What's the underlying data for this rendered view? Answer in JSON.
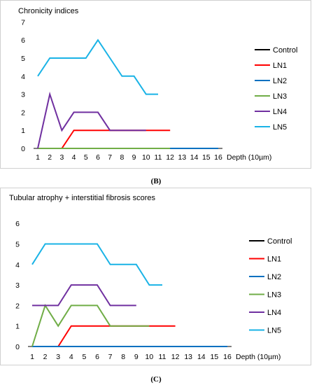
{
  "chart_data": [
    {
      "type": "line",
      "title": "Chronicity indices",
      "xlabel": "Depth (10µm)",
      "ylabel": "",
      "x": [
        1,
        2,
        3,
        4,
        5,
        6,
        7,
        8,
        9,
        10,
        11,
        12,
        13,
        14,
        15,
        16
      ],
      "ylim": [
        0,
        7
      ],
      "yticks": [
        0,
        1,
        2,
        3,
        4,
        5,
        6,
        7
      ],
      "grid": false,
      "legend_position": "right",
      "caption": "(B)",
      "series": [
        {
          "name": "Control",
          "color": "#000000",
          "x": [],
          "values": []
        },
        {
          "name": "LN1",
          "color": "#ff0000",
          "x": [
            3,
            4,
            5,
            6,
            7,
            8,
            9,
            10,
            11,
            12
          ],
          "values": [
            0,
            1,
            1,
            1,
            1,
            1,
            1,
            1,
            1,
            1
          ]
        },
        {
          "name": "LN2",
          "color": "#0070c0",
          "x": [
            1,
            2,
            3,
            4,
            5,
            6,
            7,
            8,
            9,
            10,
            11,
            12,
            13,
            14,
            15,
            16
          ],
          "values": [
            0,
            0,
            0,
            0,
            0,
            0,
            0,
            0,
            0,
            0,
            0,
            0,
            0,
            0,
            0,
            0
          ]
        },
        {
          "name": "LN3",
          "color": "#70ad47",
          "x": [
            1,
            2,
            3,
            4,
            5,
            6,
            7,
            8,
            9,
            10,
            11,
            12
          ],
          "values": [
            0,
            0,
            0,
            0,
            0,
            0,
            0,
            0,
            0,
            0,
            0,
            0
          ]
        },
        {
          "name": "LN4",
          "color": "#7030a0",
          "x": [
            1,
            2,
            3,
            4,
            5,
            6,
            7,
            8,
            9,
            10
          ],
          "values": [
            0,
            3,
            1,
            2,
            2,
            2,
            1,
            1,
            1,
            1
          ]
        },
        {
          "name": "LN5",
          "color": "#1ab3e6",
          "x": [
            1,
            2,
            3,
            4,
            5,
            6,
            7,
            8,
            9,
            10,
            11
          ],
          "values": [
            4,
            5,
            5,
            5,
            5,
            6,
            5,
            4,
            4,
            3,
            3
          ]
        }
      ]
    },
    {
      "type": "line",
      "title": "Tubular atrophy + interstitial fibrosis scores",
      "xlabel": "Depth (10µm)",
      "ylabel": "",
      "x": [
        1,
        2,
        3,
        4,
        5,
        6,
        7,
        8,
        9,
        10,
        11,
        12,
        13,
        14,
        15,
        16
      ],
      "ylim": [
        0,
        6
      ],
      "yticks": [
        0,
        1,
        2,
        3,
        4,
        5,
        6
      ],
      "grid": false,
      "legend_position": "right",
      "caption": "(C)",
      "series": [
        {
          "name": "Control",
          "color": "#000000",
          "x": [],
          "values": []
        },
        {
          "name": "LN1",
          "color": "#ff0000",
          "x": [
            3,
            4,
            5,
            6,
            7,
            8,
            9,
            10,
            11,
            12
          ],
          "values": [
            0,
            1,
            1,
            1,
            1,
            1,
            1,
            1,
            1,
            1
          ]
        },
        {
          "name": "LN2",
          "color": "#0070c0",
          "x": [
            1,
            2,
            3,
            4,
            5,
            6,
            7,
            8,
            9,
            10,
            11,
            12,
            13,
            14,
            15,
            16
          ],
          "values": [
            0,
            0,
            0,
            0,
            0,
            0,
            0,
            0,
            0,
            0,
            0,
            0,
            0,
            0,
            0,
            0
          ]
        },
        {
          "name": "LN3",
          "color": "#70ad47",
          "x": [
            1,
            2,
            3,
            4,
            5,
            6,
            7,
            8,
            9,
            10
          ],
          "values": [
            0,
            2,
            1,
            2,
            2,
            2,
            1,
            1,
            1,
            1
          ]
        },
        {
          "name": "LN4",
          "color": "#7030a0",
          "x": [
            1,
            2,
            3,
            4,
            5,
            6,
            7,
            8,
            9
          ],
          "values": [
            2,
            2,
            2,
            3,
            3,
            3,
            2,
            2,
            2
          ]
        },
        {
          "name": "LN5",
          "color": "#1ab3e6",
          "x": [
            1,
            2,
            3,
            4,
            5,
            6,
            7,
            8,
            9,
            10,
            11
          ],
          "values": [
            4,
            5,
            5,
            5,
            5,
            5,
            4,
            4,
            4,
            3,
            3
          ]
        }
      ]
    }
  ]
}
